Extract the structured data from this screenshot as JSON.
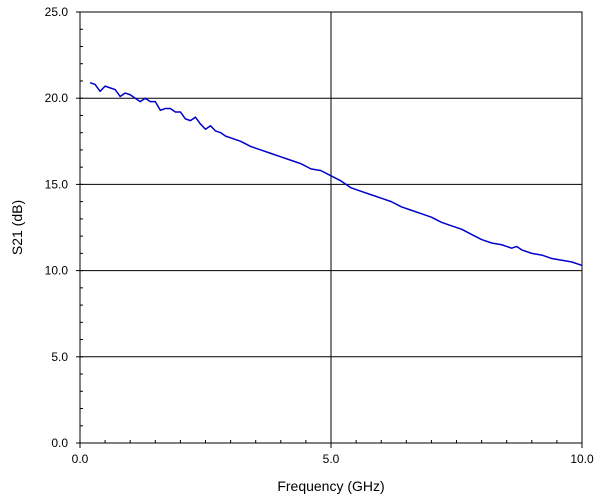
{
  "chart_data": {
    "type": "line",
    "title": "",
    "xlabel": "Frequency (GHz)",
    "ylabel": "S21 (dB)",
    "xlim": [
      0,
      10
    ],
    "ylim": [
      0,
      25
    ],
    "xticks": [
      "0.0",
      "5.0",
      "10.0"
    ],
    "yticks": [
      "0.0",
      "5.0",
      "10.0",
      "15.0",
      "20.0",
      "25.0"
    ],
    "grid": true,
    "legend": "none",
    "series": [
      {
        "color": "#0000cc",
        "x": [
          0.2,
          0.3,
          0.4,
          0.5,
          0.6,
          0.7,
          0.8,
          0.9,
          1.0,
          1.1,
          1.2,
          1.3,
          1.4,
          1.5,
          1.6,
          1.7,
          1.8,
          1.9,
          2.0,
          2.1,
          2.2,
          2.3,
          2.4,
          2.5,
          2.6,
          2.7,
          2.8,
          2.9,
          3.0,
          3.2,
          3.4,
          3.6,
          3.8,
          4.0,
          4.2,
          4.4,
          4.6,
          4.8,
          5.0,
          5.2,
          5.4,
          5.6,
          5.8,
          6.0,
          6.2,
          6.4,
          6.6,
          6.8,
          7.0,
          7.2,
          7.4,
          7.6,
          7.8,
          8.0,
          8.2,
          8.4,
          8.6,
          8.7,
          8.8,
          9.0,
          9.2,
          9.4,
          9.6,
          9.8,
          10.0
        ],
        "y": [
          20.9,
          20.8,
          20.4,
          20.7,
          20.6,
          20.5,
          20.1,
          20.3,
          20.2,
          20.0,
          19.8,
          20.0,
          19.8,
          19.8,
          19.3,
          19.4,
          19.4,
          19.2,
          19.2,
          18.8,
          18.7,
          18.9,
          18.5,
          18.2,
          18.4,
          18.1,
          18.0,
          17.8,
          17.7,
          17.5,
          17.2,
          17.0,
          16.8,
          16.6,
          16.4,
          16.2,
          15.9,
          15.8,
          15.5,
          15.2,
          14.8,
          14.6,
          14.4,
          14.2,
          14.0,
          13.7,
          13.5,
          13.3,
          13.1,
          12.8,
          12.6,
          12.4,
          12.1,
          11.8,
          11.6,
          11.5,
          11.3,
          11.4,
          11.2,
          11.0,
          10.9,
          10.7,
          10.6,
          10.5,
          10.3
        ]
      }
    ]
  }
}
